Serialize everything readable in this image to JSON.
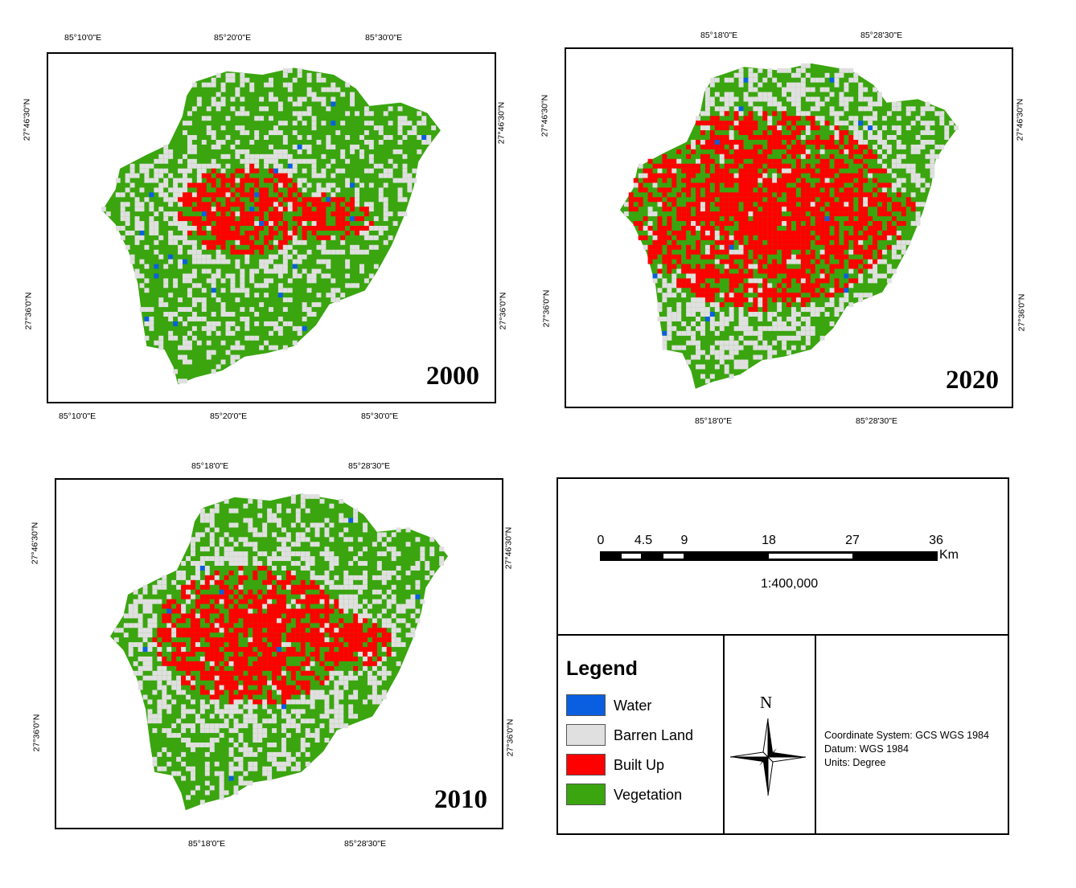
{
  "maps": [
    {
      "id": "2000",
      "year": "2000",
      "top_labels": [
        "85°10'0\"E",
        "85°20'0\"E",
        "85°30'0\"E"
      ],
      "bottom_labels": [
        "85°10'0\"E",
        "85°20'0\"E",
        "85°30'0\"E"
      ],
      "left_labels": [
        "27°46'30\"N",
        "27°36'0\"N"
      ],
      "right_labels": [
        "27°46'30\"N",
        "27°36'0\"N"
      ],
      "built_up_level": 0.25
    },
    {
      "id": "2020",
      "year": "2020",
      "top_labels": [
        "85°18'0\"E",
        "85°28'30\"E"
      ],
      "bottom_labels": [
        "85°18'0\"E",
        "85°28'30\"E"
      ],
      "left_labels": [
        "27°46'30\"N",
        "27°36'0\"N"
      ],
      "right_labels": [
        "27°46'30\"N",
        "27°36'0\"N"
      ],
      "built_up_level": 1.0
    },
    {
      "id": "2010",
      "year": "2010",
      "top_labels": [
        "85°18'0\"E",
        "85°28'30\"E"
      ],
      "bottom_labels": [
        "85°18'0\"E",
        "85°28'30\"E"
      ],
      "left_labels": [
        "27°46'30\"N",
        "27°36'0\"N"
      ],
      "right_labels": [
        "27°46'30\"N",
        "27°36'0\"N"
      ],
      "built_up_level": 0.6
    }
  ],
  "scale_bar": {
    "ticks": [
      "0",
      "4.5",
      "9",
      "18",
      "27",
      "36"
    ],
    "unit": "Km",
    "ratio": "1:400,000"
  },
  "legend": {
    "title": "Legend",
    "items": [
      {
        "label": "Water",
        "color": "#0a5fe0"
      },
      {
        "label": "Barren Land",
        "color": "#e0e0e0"
      },
      {
        "label": "Built Up",
        "color": "#ff0000"
      },
      {
        "label": "Vegetation",
        "color": "#3aa50f"
      }
    ]
  },
  "north_arrow": {
    "letter": "N"
  },
  "coordinate_info": {
    "system": "Coordinate System: GCS WGS 1984",
    "datum": "Datum: WGS 1984",
    "units": "Units: Degree"
  }
}
